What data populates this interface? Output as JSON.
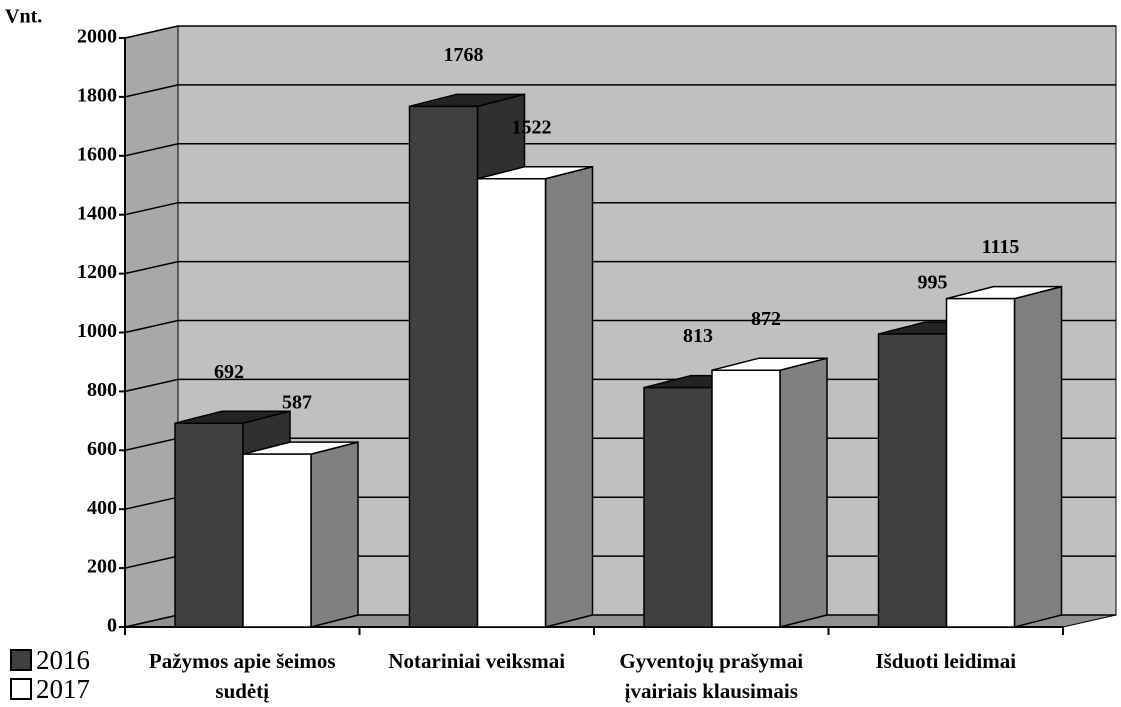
{
  "chart_data": {
    "type": "bar3d",
    "ylabel": "Vnt.",
    "categories": [
      "Pažymos apie šeimos sudėtį",
      "Notariniai veiksmai",
      "Gyventojų prašymai įvairiais klausimais",
      "Išduoti leidimai"
    ],
    "series": [
      {
        "name": "2016",
        "color": "#404040",
        "values": [
          692,
          1768,
          813,
          995
        ]
      },
      {
        "name": "2017",
        "color": "#ffffff",
        "values": [
          587,
          1522,
          872,
          1115
        ]
      }
    ],
    "ylim": [
      0,
      2000
    ],
    "yticks": [
      0,
      200,
      400,
      600,
      800,
      1000,
      1200,
      1400,
      1600,
      1800,
      2000
    ],
    "grid": true,
    "legend": "bottom-left"
  }
}
